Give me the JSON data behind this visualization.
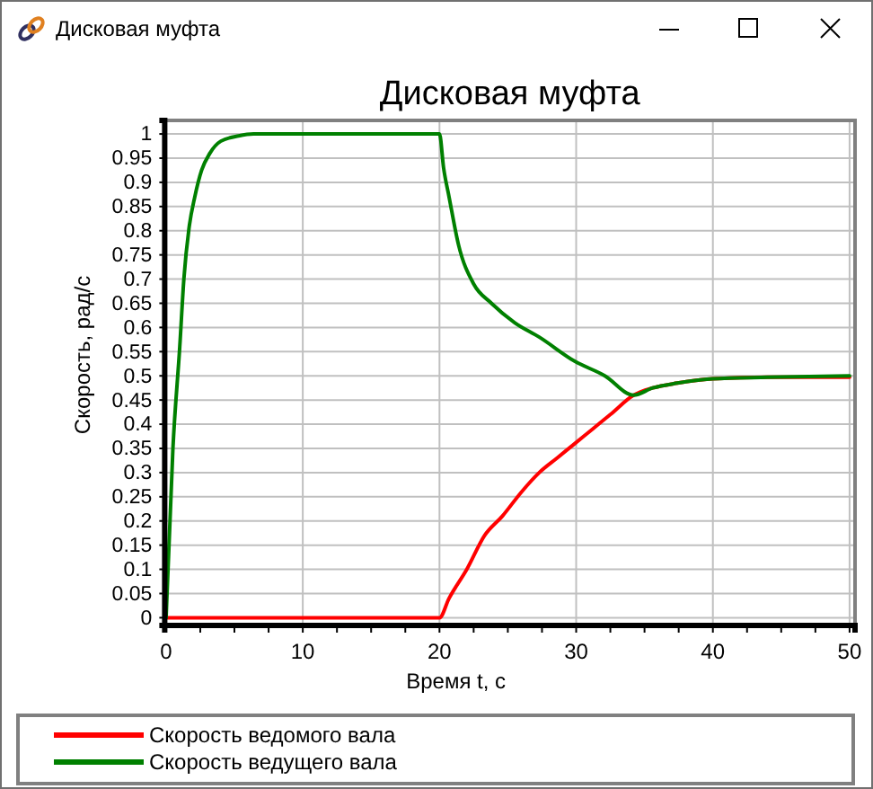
{
  "chart_data": {
    "type": "line",
    "title": "Дисковая муфта",
    "xlabel": "Время t, с",
    "ylabel": "Скорость, рад/с",
    "annotations": [
      "Дисковая муфта"
    ],
    "xlim": [
      -0.1,
      50.4
    ],
    "ylim": [
      -0.016,
      1.028
    ],
    "xticks": [
      0,
      {
        "value": 2.5,
        "label": null
      },
      {
        "value": 5,
        "label": null
      },
      {
        "value": 7.5,
        "label": null
      },
      10,
      {
        "value": 12.5,
        "label": null
      },
      {
        "value": 15,
        "label": null
      },
      {
        "value": 17.5,
        "label": null
      },
      20,
      {
        "value": 22.5,
        "label": null
      },
      {
        "value": 25,
        "label": null
      },
      {
        "value": 27.5,
        "label": null
      },
      30,
      {
        "value": 32.5,
        "label": null
      },
      {
        "value": 35,
        "label": null
      },
      {
        "value": 37.5,
        "label": null
      },
      40,
      {
        "value": 42.5,
        "label": null
      },
      {
        "value": 45,
        "label": null
      },
      {
        "value": 47.5,
        "label": null
      },
      50
    ],
    "yticks": [
      0,
      0.05,
      0.1,
      0.15,
      0.2,
      0.25,
      0.3,
      0.35,
      0.4,
      0.45,
      0.5,
      0.55,
      0.6,
      0.65,
      0.7,
      0.75,
      0.8,
      0.85,
      0.9,
      0.95,
      1
    ],
    "grid": true,
    "legend": "bottom",
    "series": [
      {
        "name": "Скорость ведомого вала",
        "color": "#ff0000",
        "x": [
          0,
          20,
          20.7,
          22,
          23.3,
          24.6,
          26,
          27.3,
          28.6,
          29.9,
          31.2,
          32.5,
          34.2,
          35.6,
          37.4,
          40,
          44,
          50
        ],
        "values": [
          0,
          0,
          0.04,
          0.1,
          0.17,
          0.21,
          0.26,
          0.3,
          0.33,
          0.36,
          0.39,
          0.42,
          0.46,
          0.475,
          0.485,
          0.494,
          0.497,
          0.497
        ]
      },
      {
        "name": "Скорость ведущего вала",
        "color": "#008000",
        "x": [
          0,
          0.5,
          1,
          1.3,
          1.7,
          2.1,
          2.6,
          3.2,
          4,
          5.3,
          6.4,
          20,
          20.3,
          20.7,
          21.4,
          22.5,
          23.8,
          25.5,
          27.3,
          29.9,
          32.1,
          34.2,
          35.6,
          37.4,
          40,
          44,
          50
        ],
        "values": [
          0,
          0.35,
          0.56,
          0.7,
          0.81,
          0.87,
          0.925,
          0.96,
          0.985,
          0.996,
          1,
          1,
          0.93,
          0.87,
          0.77,
          0.69,
          0.65,
          0.61,
          0.58,
          0.53,
          0.5,
          0.46,
          0.475,
          0.485,
          0.494,
          0.497,
          0.5
        ]
      }
    ]
  }
}
